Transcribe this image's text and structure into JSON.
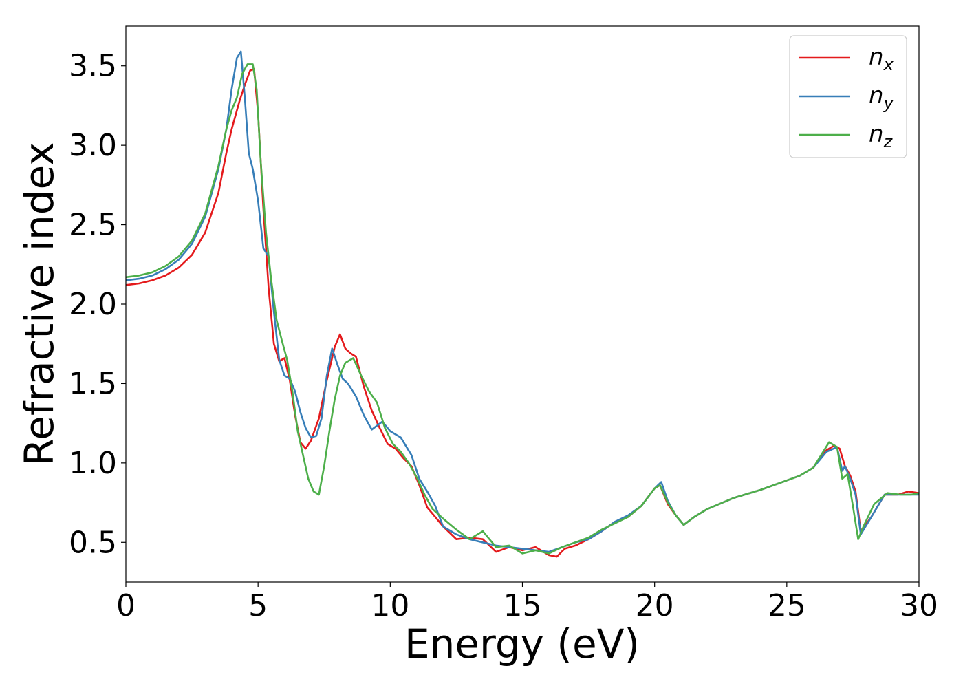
{
  "chart_data": {
    "type": "line",
    "title": "",
    "xlabel": "Energy (eV)",
    "ylabel": "Refractive index",
    "xlim": [
      0,
      30
    ],
    "ylim": [
      0.25,
      3.75
    ],
    "xticks": [
      0,
      5,
      10,
      15,
      20,
      25,
      30
    ],
    "xtick_labels": [
      "0",
      "5",
      "10",
      "15",
      "20",
      "25",
      "30"
    ],
    "yticks": [
      0.5,
      1.0,
      1.5,
      2.0,
      2.5,
      3.0,
      3.5
    ],
    "ytick_labels": [
      "0.5",
      "1.0",
      "1.5",
      "2.0",
      "2.5",
      "3.0",
      "3.5"
    ],
    "grid": false,
    "legend_position": "top-right",
    "series": [
      {
        "name": "n",
        "subscript": "x",
        "color": "#e41a1c",
        "x": [
          0,
          0.5,
          1,
          1.5,
          2,
          2.5,
          3,
          3.5,
          3.8,
          4.0,
          4.3,
          4.5,
          4.7,
          4.85,
          5.0,
          5.2,
          5.4,
          5.6,
          5.8,
          6.0,
          6.2,
          6.4,
          6.6,
          6.8,
          7.0,
          7.3,
          7.6,
          7.9,
          8.1,
          8.3,
          8.5,
          8.7,
          9.0,
          9.3,
          9.6,
          9.9,
          10.2,
          10.5,
          10.8,
          11.1,
          11.4,
          11.7,
          12.0,
          12.5,
          13.0,
          13.5,
          14.0,
          14.5,
          15.0,
          15.5,
          16.0,
          16.3,
          16.6,
          17.0,
          17.5,
          18.0,
          18.5,
          19.0,
          19.5,
          20.0,
          20.2,
          20.5,
          20.8,
          21.1,
          21.5,
          22.0,
          23.0,
          24.0,
          25.0,
          25.5,
          26.0,
          26.5,
          26.8,
          27.0,
          27.2,
          27.4,
          27.6,
          27.8,
          28.2,
          28.7,
          29.2,
          29.6,
          30.0
        ],
        "y": [
          2.12,
          2.13,
          2.15,
          2.18,
          2.23,
          2.31,
          2.45,
          2.7,
          2.95,
          3.1,
          3.28,
          3.38,
          3.47,
          3.48,
          3.2,
          2.6,
          2.1,
          1.75,
          1.64,
          1.66,
          1.52,
          1.3,
          1.13,
          1.09,
          1.14,
          1.28,
          1.52,
          1.73,
          1.81,
          1.72,
          1.69,
          1.67,
          1.48,
          1.33,
          1.22,
          1.12,
          1.09,
          1.03,
          0.98,
          0.86,
          0.72,
          0.66,
          0.6,
          0.52,
          0.53,
          0.52,
          0.44,
          0.47,
          0.45,
          0.47,
          0.42,
          0.41,
          0.46,
          0.48,
          0.52,
          0.57,
          0.63,
          0.66,
          0.73,
          0.84,
          0.86,
          0.74,
          0.67,
          0.61,
          0.66,
          0.71,
          0.78,
          0.83,
          0.89,
          0.92,
          0.97,
          1.08,
          1.11,
          1.09,
          0.98,
          0.92,
          0.82,
          0.57,
          0.66,
          0.8,
          0.8,
          0.82,
          0.81
        ]
      },
      {
        "name": "n",
        "subscript": "y",
        "color": "#377eb8",
        "x": [
          0,
          0.5,
          1,
          1.5,
          2,
          2.5,
          3,
          3.5,
          3.8,
          4.0,
          4.2,
          4.35,
          4.5,
          4.65,
          4.8,
          5.0,
          5.2,
          5.4,
          5.6,
          5.8,
          6.0,
          6.2,
          6.4,
          6.6,
          6.8,
          7.0,
          7.2,
          7.4,
          7.6,
          7.8,
          8.0,
          8.2,
          8.4,
          8.7,
          9.0,
          9.3,
          9.7,
          10.0,
          10.4,
          10.8,
          11.1,
          11.4,
          11.7,
          12.0,
          12.5,
          13.0,
          13.5,
          14.0,
          14.5,
          15.0,
          15.5,
          16.0,
          16.5,
          17.0,
          17.5,
          18.0,
          18.5,
          19.0,
          19.5,
          20.0,
          20.25,
          20.5,
          20.8,
          21.1,
          21.5,
          22.0,
          23.0,
          24.0,
          25.0,
          25.5,
          26.0,
          26.5,
          26.9,
          27.1,
          27.2,
          27.4,
          27.6,
          27.8,
          28.2,
          28.7,
          29.2,
          29.6,
          30.0
        ],
        "y": [
          2.15,
          2.16,
          2.18,
          2.22,
          2.28,
          2.38,
          2.55,
          2.85,
          3.1,
          3.35,
          3.55,
          3.59,
          3.3,
          2.95,
          2.85,
          2.65,
          2.35,
          2.3,
          1.95,
          1.65,
          1.55,
          1.53,
          1.45,
          1.32,
          1.22,
          1.16,
          1.17,
          1.28,
          1.55,
          1.72,
          1.62,
          1.53,
          1.5,
          1.42,
          1.3,
          1.21,
          1.26,
          1.2,
          1.16,
          1.05,
          0.9,
          0.82,
          0.73,
          0.6,
          0.55,
          0.52,
          0.5,
          0.48,
          0.47,
          0.46,
          0.45,
          0.44,
          0.47,
          0.5,
          0.52,
          0.57,
          0.63,
          0.67,
          0.73,
          0.84,
          0.88,
          0.76,
          0.67,
          0.61,
          0.66,
          0.71,
          0.78,
          0.83,
          0.89,
          0.92,
          0.97,
          1.07,
          1.1,
          0.95,
          0.98,
          0.9,
          0.8,
          0.55,
          0.66,
          0.8,
          0.8,
          0.8,
          0.8
        ]
      },
      {
        "name": "n",
        "subscript": "z",
        "color": "#4daf4a",
        "x": [
          0,
          0.5,
          1,
          1.5,
          2,
          2.5,
          3,
          3.5,
          3.8,
          4.0,
          4.2,
          4.4,
          4.6,
          4.8,
          4.95,
          5.1,
          5.3,
          5.5,
          5.7,
          5.9,
          6.1,
          6.3,
          6.5,
          6.7,
          6.9,
          7.1,
          7.3,
          7.5,
          7.7,
          7.9,
          8.1,
          8.3,
          8.6,
          8.9,
          9.2,
          9.5,
          9.8,
          10.1,
          10.4,
          10.7,
          11.0,
          11.3,
          11.6,
          12.0,
          12.5,
          13.0,
          13.5,
          14.0,
          14.5,
          15.0,
          15.5,
          16.0,
          16.5,
          17.0,
          17.5,
          18.0,
          18.5,
          19.0,
          19.5,
          20.0,
          20.2,
          20.5,
          20.8,
          21.1,
          21.5,
          22.0,
          23.0,
          24.0,
          25.0,
          25.5,
          26.0,
          26.6,
          26.9,
          27.1,
          27.3,
          27.5,
          27.7,
          27.9,
          28.3,
          28.8,
          29.3,
          29.7,
          30.0
        ],
        "y": [
          2.17,
          2.18,
          2.2,
          2.24,
          2.3,
          2.4,
          2.57,
          2.87,
          3.1,
          3.22,
          3.3,
          3.45,
          3.51,
          3.51,
          3.35,
          2.9,
          2.45,
          2.15,
          1.9,
          1.77,
          1.65,
          1.45,
          1.2,
          1.05,
          0.9,
          0.82,
          0.8,
          0.98,
          1.2,
          1.4,
          1.55,
          1.63,
          1.66,
          1.55,
          1.45,
          1.38,
          1.22,
          1.12,
          1.07,
          1.0,
          0.91,
          0.8,
          0.71,
          0.65,
          0.58,
          0.52,
          0.57,
          0.47,
          0.48,
          0.43,
          0.45,
          0.43,
          0.47,
          0.5,
          0.53,
          0.58,
          0.62,
          0.66,
          0.73,
          0.84,
          0.86,
          0.75,
          0.67,
          0.61,
          0.66,
          0.71,
          0.78,
          0.83,
          0.89,
          0.92,
          0.97,
          1.13,
          1.1,
          0.9,
          0.93,
          0.73,
          0.52,
          0.6,
          0.74,
          0.81,
          0.8,
          0.8,
          0.81
        ]
      }
    ]
  }
}
